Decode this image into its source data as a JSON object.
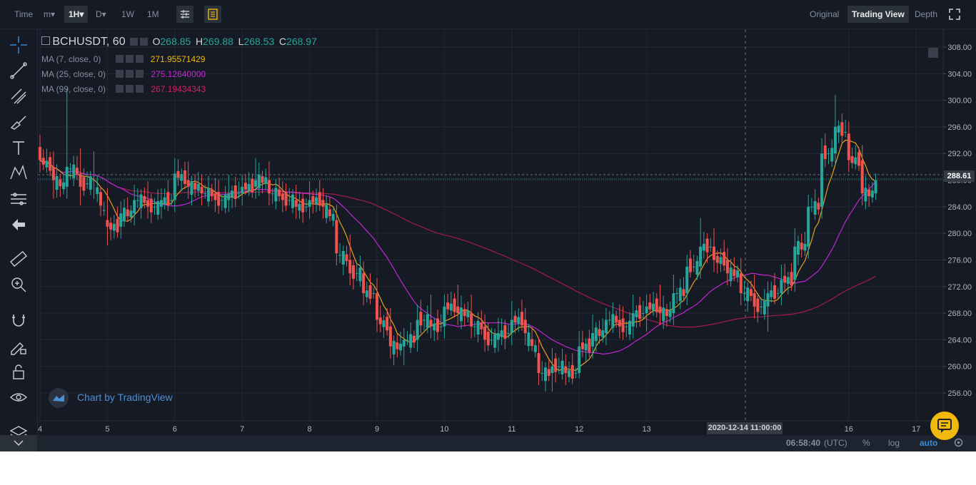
{
  "toolbar": {
    "time_label": "Time",
    "minute_menu": "m▾",
    "interval_1h": "1H▾",
    "day_menu": "D▾",
    "week": "1W",
    "month": "1M",
    "settings_icon": "sliders-icon",
    "indicator_icon": "notes-icon",
    "views": [
      "Original",
      "Trading View",
      "Depth"
    ],
    "active_view": "Trading View",
    "fullscreen_icon": "fullscreen-icon"
  },
  "legend": {
    "symbol": "BCHUSDT, 60",
    "open_label": "O",
    "open": "268.85",
    "high_label": "H",
    "high": "269.88",
    "low_label": "L",
    "low": "268.53",
    "close_label": "C",
    "close": "268.97",
    "ma7_label": "MA (7, close, 0)",
    "ma7_value": "271.95571429",
    "ma25_label": "MA (25, close, 0)",
    "ma25_value": "275.12640000",
    "ma99_label": "MA (99, close, 0)",
    "ma99_value": "267.19434343"
  },
  "colors": {
    "up": "#26a69a",
    "down": "#ef5350",
    "ma7": "#e6a11e",
    "ma25": "#c026d3",
    "ma99": "#a21c4e",
    "background": "#161a25",
    "grid": "#242833"
  },
  "watermark": "Chart by TradingView",
  "crosshair_time": "2020-12-14 11:00:00",
  "current_price": "288.61",
  "bottom": {
    "clock": "06:58:40",
    "tz": "(UTC)",
    "percent": "%",
    "log": "log",
    "auto": "auto"
  },
  "left_tools": [
    "crosshair-icon",
    "trendline-icon",
    "fib-icon",
    "brush-icon",
    "text-icon",
    "pattern-icon",
    "prediction-icon",
    "back-arrow-icon",
    "ruler-icon",
    "zoom-in-icon",
    "magnet-icon",
    "lock-draw-icon",
    "unlock-icon",
    "eye-icon",
    "layers-icon"
  ],
  "chart_data": {
    "type": "candlestick",
    "price_axis": [
      "308.00",
      "304.00",
      "300.00",
      "296.00",
      "292.00",
      "288.00",
      "284.00",
      "280.00",
      "276.00",
      "272.00",
      "268.00",
      "264.00",
      "260.00",
      "256.00"
    ],
    "ylim": [
      253,
      310
    ],
    "time_axis": [
      "4",
      "5",
      "6",
      "7",
      "8",
      "9",
      "10",
      "11",
      "12",
      "13",
      "16",
      "17"
    ],
    "ohlc": [
      [
        4.0,
        293,
        294,
        290,
        291
      ],
      [
        4.2,
        290,
        291,
        286,
        288
      ],
      [
        4.4,
        287,
        300,
        286,
        290
      ],
      [
        4.6,
        289,
        292,
        285,
        287
      ],
      [
        4.8,
        288,
        291,
        286,
        288
      ],
      [
        5.0,
        282,
        285,
        279,
        281
      ],
      [
        5.2,
        281,
        284,
        280,
        283
      ],
      [
        5.4,
        283,
        286,
        282,
        285
      ],
      [
        5.6,
        285,
        286,
        283,
        284
      ],
      [
        5.8,
        284,
        286,
        283,
        285
      ],
      [
        6.0,
        285,
        290,
        284,
        289
      ],
      [
        6.2,
        288,
        289,
        286,
        287
      ],
      [
        6.4,
        287,
        288,
        285,
        286
      ],
      [
        6.6,
        286,
        287,
        284,
        285
      ],
      [
        6.8,
        285,
        287,
        284,
        286
      ],
      [
        7.0,
        286,
        288,
        285,
        287
      ],
      [
        7.2,
        287,
        290,
        286,
        288
      ],
      [
        7.4,
        288,
        289,
        285,
        286
      ],
      [
        7.6,
        286,
        287,
        284,
        285
      ],
      [
        7.8,
        285,
        286,
        283,
        284
      ],
      [
        8.0,
        284,
        286,
        283,
        285
      ],
      [
        8.2,
        285,
        286,
        283,
        284
      ],
      [
        8.4,
        282,
        283,
        276,
        277
      ],
      [
        8.6,
        276,
        278,
        273,
        274
      ],
      [
        8.8,
        274,
        275,
        270,
        271
      ],
      [
        9.0,
        271,
        272,
        266,
        267
      ],
      [
        9.2,
        266,
        267,
        262,
        263
      ],
      [
        9.4,
        263,
        265,
        261,
        264
      ],
      [
        9.6,
        264,
        268,
        263,
        267
      ],
      [
        9.8,
        267,
        269,
        265,
        266
      ],
      [
        10.0,
        266,
        270,
        265,
        269
      ],
      [
        10.2,
        269,
        271,
        267,
        268
      ],
      [
        10.4,
        268,
        269,
        265,
        266
      ],
      [
        10.6,
        266,
        267,
        263,
        264
      ],
      [
        10.8,
        264,
        266,
        263,
        265
      ],
      [
        11.0,
        265,
        268,
        264,
        267
      ],
      [
        11.2,
        267,
        268,
        264,
        265
      ],
      [
        11.4,
        262,
        263,
        258,
        259
      ],
      [
        11.6,
        259,
        261,
        257,
        260
      ],
      [
        11.8,
        260,
        261,
        258,
        259
      ],
      [
        12.0,
        259,
        264,
        259,
        263
      ],
      [
        12.2,
        263,
        266,
        262,
        265
      ],
      [
        12.4,
        265,
        268,
        264,
        267
      ],
      [
        12.6,
        267,
        268,
        265,
        266
      ],
      [
        12.8,
        266,
        269,
        265,
        268
      ],
      [
        13.0,
        268,
        270,
        266,
        269
      ],
      [
        13.2,
        269,
        271,
        267,
        268
      ],
      [
        13.4,
        268,
        272,
        267,
        271
      ],
      [
        13.6,
        271,
        276,
        270,
        275
      ],
      [
        13.8,
        275,
        281,
        274,
        278
      ],
      [
        14.0,
        278,
        279,
        275,
        276
      ],
      [
        14.2,
        276,
        277,
        273,
        274
      ],
      [
        14.4,
        274,
        275,
        270,
        271
      ],
      [
        14.6,
        271,
        272,
        268,
        269
      ],
      [
        14.8,
        269,
        272,
        266,
        271
      ],
      [
        15.0,
        271,
        274,
        270,
        273
      ],
      [
        15.2,
        273,
        279,
        272,
        278
      ],
      [
        15.4,
        278,
        285,
        277,
        284
      ],
      [
        15.6,
        284,
        293,
        283,
        292
      ],
      [
        15.8,
        292,
        299,
        291,
        296
      ],
      [
        16.0,
        295,
        296,
        290,
        291
      ],
      [
        16.2,
        291,
        292,
        285,
        286
      ],
      [
        16.4,
        286,
        289,
        285,
        288
      ]
    ]
  }
}
